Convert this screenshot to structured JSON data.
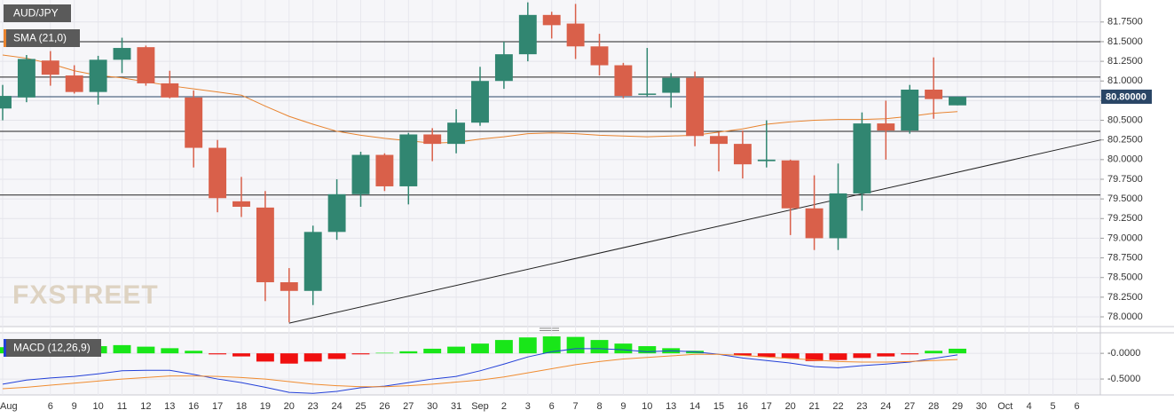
{
  "chart_data": [
    {
      "type": "candlestick",
      "title": "AUD/JPY",
      "watermark": "FXSTREET",
      "categories": [
        "Aug",
        null,
        "6",
        "9",
        "10",
        "11",
        "12",
        "13",
        "16",
        "17",
        "18",
        "19",
        "20",
        "23",
        "24",
        "25",
        "26",
        "27",
        "30",
        "31",
        "Sep",
        "2",
        "3",
        "6",
        "7",
        "8",
        "9",
        "10",
        "13",
        "14",
        "15",
        "16",
        "17",
        "20",
        "21",
        "22",
        "23",
        "24",
        "27",
        "28",
        "29",
        "30",
        "Oct",
        "4",
        "5",
        "6"
      ],
      "open": [
        80.65,
        80.79,
        81.26,
        81.07,
        80.86,
        81.27,
        81.43,
        80.97,
        80.79,
        80.15,
        79.47,
        79.39,
        78.44,
        78.33,
        79.08,
        79.56,
        80.06,
        79.66,
        80.32,
        80.2,
        80.47,
        81.0,
        81.34,
        81.84,
        81.73,
        81.44,
        81.2,
        80.83,
        80.85,
        81.04,
        80.3,
        80.2,
        79.98,
        79.99,
        79.38,
        79.0,
        79.57,
        80.46,
        80.37,
        80.89,
        80.69,
        null,
        null,
        null,
        null,
        null
      ],
      "high": [
        80.95,
        81.33,
        81.38,
        81.2,
        81.32,
        81.55,
        81.45,
        81.13,
        80.88,
        80.25,
        79.78,
        79.6,
        78.62,
        79.16,
        79.75,
        80.1,
        80.08,
        80.34,
        80.4,
        80.64,
        81.18,
        81.5,
        82.0,
        81.88,
        81.98,
        81.6,
        81.23,
        81.42,
        81.1,
        81.12,
        80.35,
        80.37,
        80.5,
        80.0,
        79.8,
        79.95,
        80.6,
        80.75,
        80.95,
        81.3,
        80.8,
        null,
        null,
        null,
        null,
        null
      ],
      "low": [
        80.5,
        80.73,
        80.94,
        80.84,
        80.7,
        81.1,
        80.94,
        80.78,
        79.9,
        79.33,
        79.27,
        78.2,
        77.93,
        78.15,
        78.98,
        79.4,
        79.6,
        79.43,
        79.98,
        80.08,
        80.43,
        80.9,
        81.25,
        81.54,
        81.28,
        81.07,
        80.78,
        80.8,
        80.66,
        80.17,
        79.85,
        79.76,
        79.9,
        79.04,
        78.85,
        78.85,
        79.35,
        80.0,
        80.33,
        80.52,
        80.69,
        null,
        null,
        null,
        null,
        null
      ],
      "close": [
        80.81,
        81.28,
        81.08,
        80.86,
        81.27,
        81.42,
        80.97,
        80.79,
        80.15,
        79.51,
        79.4,
        78.44,
        78.33,
        79.08,
        79.56,
        80.06,
        79.66,
        80.32,
        80.2,
        80.47,
        81.0,
        81.34,
        81.84,
        81.71,
        81.44,
        81.2,
        80.81,
        80.84,
        81.04,
        80.3,
        80.2,
        79.94,
        80.0,
        79.38,
        79.0,
        79.57,
        80.46,
        80.37,
        80.89,
        80.77,
        80.8,
        null,
        null,
        null,
        null,
        null
      ],
      "up_color": "#318671",
      "down_color": "#d9604a",
      "sma": {
        "name": "SMA (21,0)",
        "color": "#e8832e",
        "values": [
          81.33,
          81.29,
          81.22,
          81.13,
          81.07,
          81.04,
          80.99,
          80.94,
          80.9,
          80.86,
          80.82,
          80.68,
          80.55,
          80.45,
          80.36,
          80.31,
          80.27,
          80.24,
          80.21,
          80.22,
          80.26,
          80.29,
          80.33,
          80.34,
          80.33,
          80.31,
          80.3,
          80.29,
          80.3,
          80.31,
          80.35,
          80.39,
          80.45,
          80.48,
          80.5,
          80.51,
          80.51,
          80.52,
          80.55,
          80.59,
          80.61,
          null,
          null,
          null,
          null,
          null
        ]
      },
      "levels": [
        81.5,
        81.05,
        80.36,
        79.55
      ],
      "current_price": {
        "value": 80.8,
        "label": "80.80000"
      },
      "trendline": {
        "x": [
          12,
          46
        ],
        "y": [
          77.92,
          80.25
        ]
      },
      "ylim": [
        77.876,
        82.03
      ],
      "yticks": [
        {
          "value": 78,
          "label": "78.0000"
        },
        {
          "value": 78.25,
          "label": "78.2500"
        },
        {
          "value": 78.5,
          "label": "78.5000"
        },
        {
          "value": 78.75,
          "label": "78.7500"
        },
        {
          "value": 79,
          "label": "79.0000"
        },
        {
          "value": 79.25,
          "label": "79.2500"
        },
        {
          "value": 79.5,
          "label": "79.5000"
        },
        {
          "value": 79.75,
          "label": "79.7500"
        },
        {
          "value": 80,
          "label": "80.0000"
        },
        {
          "value": 80.25,
          "label": "80.2500"
        },
        {
          "value": 80.5,
          "label": "80.5000"
        },
        {
          "value": 80.75,
          "label": "80.7500"
        },
        {
          "value": 81,
          "label": "81.0000"
        },
        {
          "value": 81.25,
          "label": "81.2500"
        },
        {
          "value": 81.5,
          "label": "81.5000"
        },
        {
          "value": 81.75,
          "label": "81.7500"
        }
      ],
      "grid": true
    },
    {
      "type": "macd",
      "title": "MACD (12,26,9)",
      "histogram": [
        0.12,
        0.12,
        0.1,
        0.12,
        0.14,
        0.16,
        0.13,
        0.1,
        0.05,
        -0.02,
        -0.06,
        -0.16,
        -0.2,
        -0.16,
        -0.11,
        -0.02,
        0.01,
        0.04,
        0.09,
        0.13,
        0.19,
        0.26,
        0.31,
        0.33,
        0.32,
        0.26,
        0.19,
        0.14,
        0.1,
        0.05,
        0.0,
        -0.04,
        -0.07,
        -0.1,
        -0.15,
        -0.13,
        -0.09,
        -0.06,
        -0.02,
        0.05,
        0.09,
        null,
        null,
        null,
        null,
        null
      ],
      "up_color": "#19e619",
      "down_color": "#f01010",
      "series": [
        {
          "name": "MACD",
          "color": "#2340d8",
          "values": [
            -0.6,
            -0.52,
            -0.48,
            -0.45,
            -0.4,
            -0.34,
            -0.33,
            -0.33,
            -0.41,
            -0.5,
            -0.57,
            -0.66,
            -0.76,
            -0.78,
            -0.74,
            -0.67,
            -0.64,
            -0.57,
            -0.5,
            -0.45,
            -0.34,
            -0.21,
            -0.07,
            0.03,
            0.09,
            0.09,
            0.07,
            0.03,
            0.05,
            0.03,
            -0.02,
            -0.09,
            -0.14,
            -0.19,
            -0.26,
            -0.28,
            -0.24,
            -0.21,
            -0.17,
            -0.1,
            -0.03,
            null,
            null,
            null,
            null,
            null
          ]
        },
        {
          "name": "Signal",
          "color": "#f08c30",
          "values": [
            -0.69,
            -0.66,
            -0.62,
            -0.58,
            -0.54,
            -0.5,
            -0.47,
            -0.44,
            -0.44,
            -0.45,
            -0.47,
            -0.5,
            -0.55,
            -0.6,
            -0.63,
            -0.65,
            -0.65,
            -0.63,
            -0.6,
            -0.56,
            -0.52,
            -0.46,
            -0.38,
            -0.3,
            -0.22,
            -0.16,
            -0.11,
            -0.08,
            -0.05,
            -0.02,
            -0.02,
            -0.04,
            -0.07,
            -0.1,
            -0.13,
            -0.16,
            -0.17,
            -0.17,
            -0.16,
            -0.14,
            -0.12,
            null,
            null,
            null,
            null,
            null
          ]
        }
      ],
      "ylim": [
        -0.81,
        0.4
      ],
      "yticks": [
        {
          "value": 0,
          "label": "-0.0000"
        },
        {
          "value": -0.5,
          "label": "-0.5000"
        }
      ],
      "grid": true
    }
  ]
}
